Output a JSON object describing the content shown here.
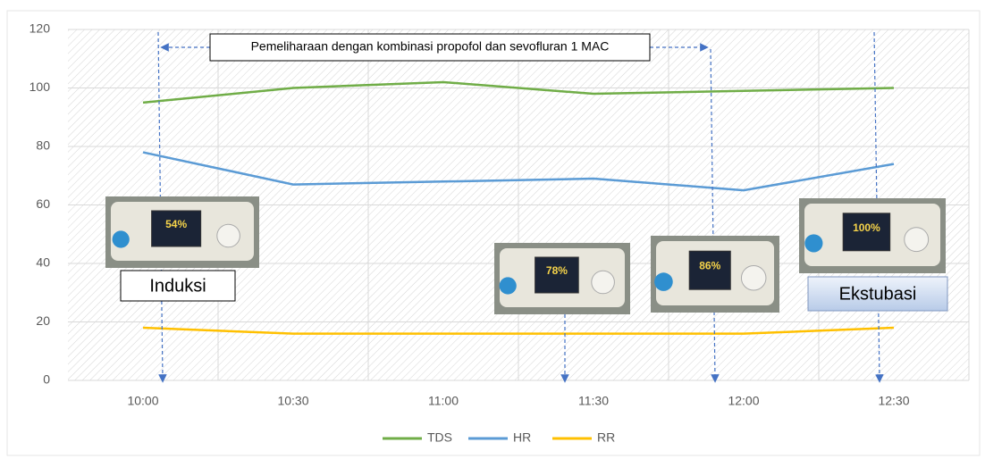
{
  "chart_data": {
    "type": "line",
    "categories": [
      "10:00",
      "10:30",
      "11:00",
      "11:30",
      "12:00",
      "12:30"
    ],
    "series": [
      {
        "name": "TDS",
        "color": "#70ad47",
        "values": [
          95,
          100,
          102,
          98,
          99,
          100
        ]
      },
      {
        "name": "HR",
        "color": "#5b9bd5",
        "values": [
          78,
          67,
          68,
          69,
          65,
          74
        ]
      },
      {
        "name": "RR",
        "color": "#ffc000",
        "values": [
          18,
          16,
          16,
          16,
          16,
          18
        ]
      }
    ],
    "ylim": [
      0,
      120
    ],
    "yticks": [
      0,
      20,
      40,
      60,
      80,
      100,
      120
    ],
    "grid": true,
    "legend": "bottom",
    "annotations": {
      "phase": "Pemeliharaan dengan kombinasi propofol dan sevofluran 1 MAC",
      "induction": "Induksi",
      "extubation": "Ekstubasi"
    },
    "device_readings": [
      "54%",
      "78%",
      "86%",
      "100%"
    ]
  }
}
